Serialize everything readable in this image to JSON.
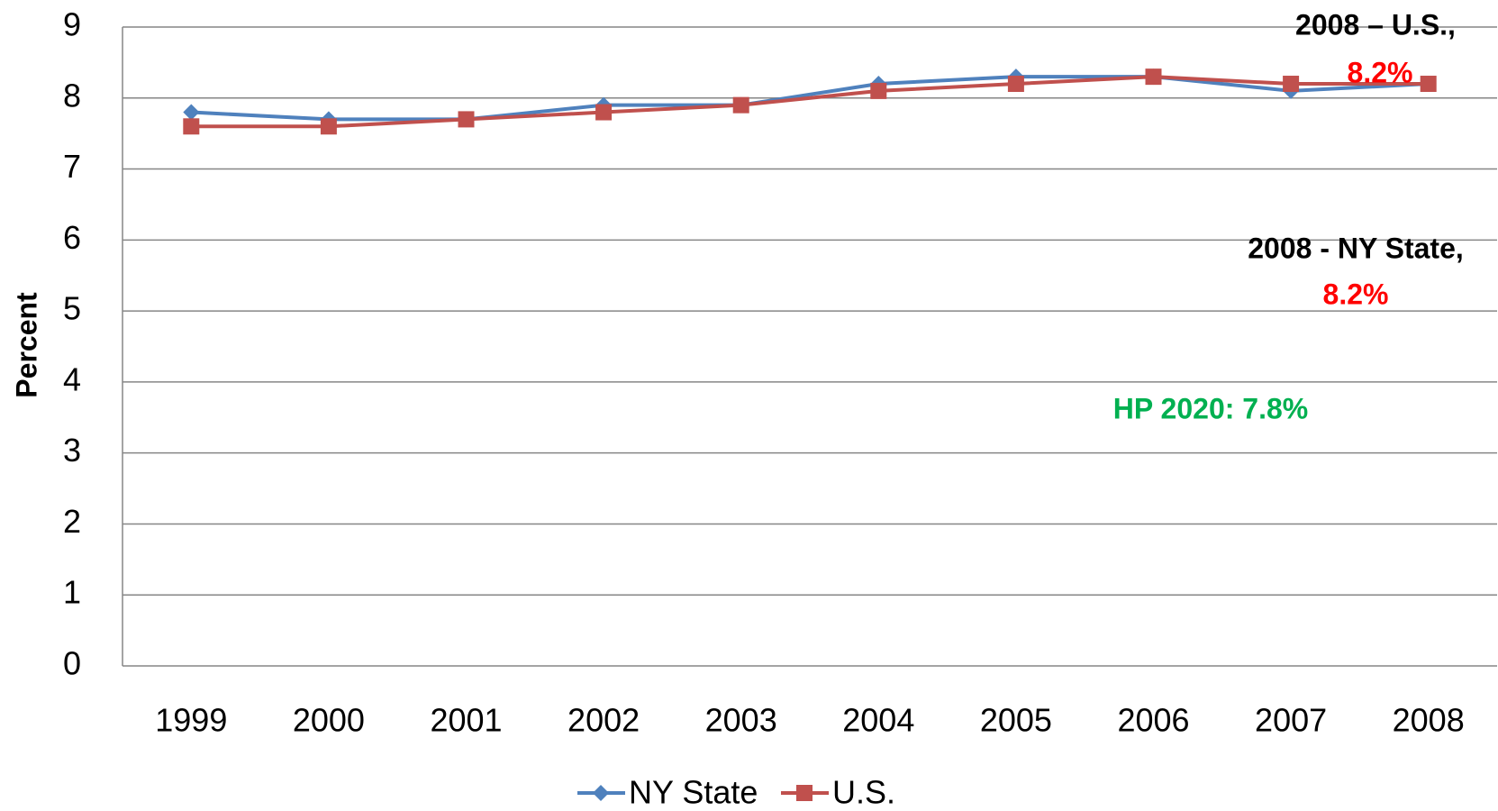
{
  "chart_data": {
    "type": "line",
    "y_label": "Percent",
    "categories": [
      "1999",
      "2000",
      "2001",
      "2002",
      "2003",
      "2004",
      "2005",
      "2006",
      "2007",
      "2008"
    ],
    "series": [
      {
        "name": "NY State",
        "color": "#4f81bd",
        "marker": "diamond",
        "values": [
          7.8,
          7.7,
          7.7,
          7.9,
          7.9,
          8.2,
          8.3,
          8.3,
          8.1,
          8.2
        ]
      },
      {
        "name": "U.S.",
        "color": "#c0504d",
        "marker": "square",
        "values": [
          7.6,
          7.6,
          7.7,
          7.8,
          7.9,
          8.1,
          8.2,
          8.3,
          8.2,
          8.2
        ]
      }
    ],
    "ylim": [
      0,
      9
    ],
    "yticks": [
      0,
      1,
      2,
      3,
      4,
      5,
      6,
      7,
      8,
      9
    ],
    "grid": true,
    "legend": "bottom",
    "annotations": [
      {
        "text": "2008 – U.S.,",
        "color": "#000000"
      },
      {
        "text": "8.2%",
        "color": "#ff0000"
      },
      {
        "text": "2008 - NY State,",
        "color": "#000000"
      },
      {
        "text": "8.2%",
        "color": "#ff0000"
      },
      {
        "text": "HP 2020: 7.8%",
        "color": "#00b050"
      }
    ]
  }
}
